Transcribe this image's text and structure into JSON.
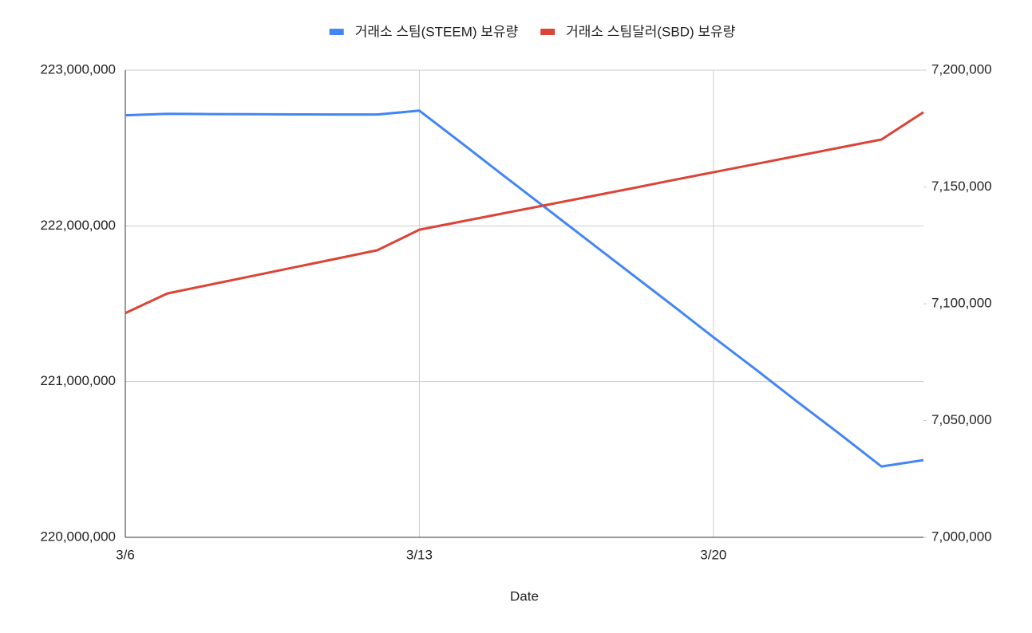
{
  "chart_data": {
    "type": "line",
    "x_label": "Date",
    "categories": [
      "3/6",
      null,
      null,
      null,
      null,
      null,
      null,
      "3/13",
      null,
      null,
      null,
      null,
      null,
      null,
      "3/20",
      null,
      null,
      null,
      null,
      null
    ],
    "series": [
      {
        "name": "거래소 스팀(STEEM) 보유량",
        "color": "#4285f4",
        "values": [
          222710000,
          222720000,
          222718000,
          222717000,
          222716000,
          222715000,
          222715000,
          222740000,
          222533000,
          222324000,
          222117000,
          221909000,
          221702000,
          221495000,
          221285000,
          221080000,
          220870000,
          220665000,
          220455000,
          220496000
        ]
      },
      {
        "name": "거래소 스팀달러(SBD) 보유량",
        "color": "#db4437",
        "axis": "y2",
        "values": [
          7096000,
          7104400,
          7108100,
          7111800,
          7115500,
          7119200,
          7122900,
          7131700,
          7135200,
          7138700,
          7142200,
          7145700,
          7149200,
          7152800,
          7156300,
          7159800,
          7163300,
          7166800,
          7170300,
          7182000
        ]
      }
    ],
    "ylim": [
      220000000,
      223000000
    ],
    "yticks": [
      {
        "value": 220000000,
        "label": "220,000,000"
      },
      {
        "value": 221000000,
        "label": "221,000,000"
      },
      {
        "value": 222000000,
        "label": "222,000,000"
      },
      {
        "value": 223000000,
        "label": "223,000,000"
      }
    ],
    "y2lim": [
      7000000,
      7200000
    ],
    "y2ticks": [
      {
        "value": 7000000,
        "label": "7,000,000"
      },
      {
        "value": 7050000,
        "label": "7,050,000"
      },
      {
        "value": 7100000,
        "label": "7,100,000"
      },
      {
        "value": 7150000,
        "label": "7,150,000"
      },
      {
        "value": 7200000,
        "label": "7,200,000"
      }
    ],
    "grid": true,
    "legend": "top"
  }
}
